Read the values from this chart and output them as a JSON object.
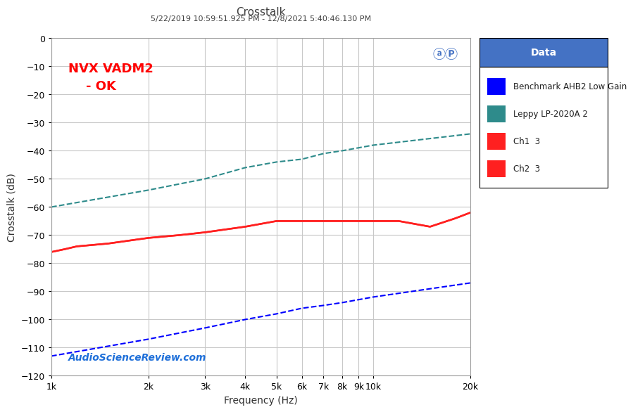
{
  "title": "Crosstalk",
  "subtitle": "5/22/2019 10:59:51.925 PM - 12/8/2021 5:40:46.130 PM",
  "xlabel": "Frequency (Hz)",
  "ylabel": "Crosstalk (dB)",
  "xlim_log": [
    1000,
    20000
  ],
  "ylim": [
    -120,
    0
  ],
  "yticks": [
    0,
    -10,
    -20,
    -30,
    -40,
    -50,
    -60,
    -70,
    -80,
    -90,
    -100,
    -110,
    -120
  ],
  "xticks": [
    1000,
    2000,
    3000,
    4000,
    5000,
    6000,
    7000,
    8000,
    9000,
    10000,
    20000
  ],
  "annotation_text": "NVX VADM2\n    - OK",
  "watermark": "AudioScienceReview.com",
  "bg_color": "#FFFFFF",
  "plot_bg_color": "#FFFFFF",
  "grid_color": "#C8C8C8",
  "legend_title": "Data",
  "legend_header_color": "#4472C4",
  "legend_header_text_color": "#FFFFFF",
  "title_color": "#404040",
  "subtitle_color": "#404040",
  "series": [
    {
      "label": "Benchmark AHB2 Low Gain",
      "color": "#0000FF",
      "linestyle": "dashed",
      "linewidth": 1.5,
      "x": [
        1000,
        2000,
        3000,
        4000,
        5000,
        6000,
        7000,
        8000,
        10000,
        20000
      ],
      "y": [
        -113,
        -107,
        -103,
        -100,
        -98,
        -96,
        -95,
        -94,
        -92,
        -87
      ]
    },
    {
      "label": "Leppy LP-2020A 2",
      "color": "#2E8B8B",
      "linestyle": "dashed",
      "linewidth": 1.5,
      "x": [
        1000,
        2000,
        3000,
        4000,
        5000,
        6000,
        7000,
        8000,
        10000,
        20000
      ],
      "y": [
        -60,
        -54,
        -50,
        -46,
        -44,
        -43,
        -41,
        -40,
        -38,
        -34
      ]
    },
    {
      "label": "Ch1  3",
      "color": "#FF2020",
      "linestyle": "solid",
      "linewidth": 1.8,
      "x": [
        1000,
        1100,
        1200,
        1500,
        2000,
        2500,
        3000,
        4000,
        5000,
        6000,
        7000,
        7500,
        8000,
        9000,
        10000,
        12000,
        15000,
        18000,
        20000
      ],
      "y": [
        -76,
        -75,
        -74,
        -73,
        -71,
        -70,
        -69,
        -67,
        -65,
        -65,
        -65,
        -65,
        -65,
        -65,
        -65,
        -65,
        -67,
        -64,
        -62
      ]
    },
    {
      "label": "Ch2  3",
      "color": "#FF2020",
      "linestyle": "solid",
      "linewidth": 1.8,
      "x": [
        1000,
        1100,
        1200,
        1500,
        2000,
        2500,
        3000,
        4000,
        5000,
        6000,
        7000,
        7500,
        8000,
        9000,
        10000,
        12000,
        15000,
        18000,
        20000
      ],
      "y": [
        -76,
        -75,
        -74,
        -73,
        -71,
        -70,
        -69,
        -67,
        -65,
        -65,
        -65,
        -65,
        -65,
        -65,
        -65,
        -65,
        -67,
        -64,
        -62
      ]
    }
  ]
}
